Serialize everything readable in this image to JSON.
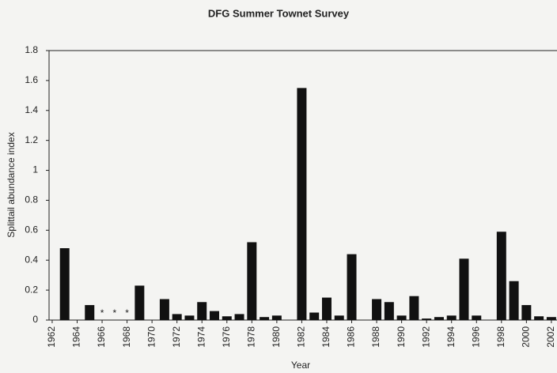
{
  "chart_data": {
    "type": "bar",
    "title": "DFG Summer Townet Survey",
    "x_label": "Year",
    "y_label": "Splittail abundance index",
    "x": [
      1963,
      1965,
      1969,
      1971,
      1972,
      1973,
      1974,
      1975,
      1976,
      1977,
      1978,
      1979,
      1980,
      1982,
      1983,
      1984,
      1985,
      1986,
      1988,
      1989,
      1990,
      1991,
      1992,
      1993,
      1994,
      1995,
      1996,
      1998,
      1999,
      2000,
      2001,
      2002
    ],
    "values": [
      0.48,
      0.1,
      0.23,
      0.14,
      0.04,
      0.03,
      0.12,
      0.06,
      0.025,
      0.04,
      0.52,
      0.02,
      0.03,
      1.55,
      0.05,
      0.15,
      0.03,
      0.44,
      0.14,
      0.12,
      0.03,
      0.16,
      0.01,
      0.02,
      0.03,
      0.41,
      0.03,
      0.59,
      0.26,
      0.1,
      0.025,
      0.02
    ],
    "color": "#111111",
    "annotations": [
      {
        "x": 1966,
        "text": "*"
      },
      {
        "x": 1967,
        "text": "*"
      },
      {
        "x": 1968,
        "text": "*"
      }
    ],
    "xlim": [
      1961.75,
      2002.45
    ],
    "xticks": [
      1962,
      1964,
      1966,
      1968,
      1970,
      1972,
      1974,
      1976,
      1978,
      1980,
      1982,
      1984,
      1986,
      1988,
      1990,
      1992,
      1994,
      1996,
      1998,
      2000,
      2002
    ],
    "ylim": [
      0,
      1.8
    ],
    "yticks": [
      0,
      0.2,
      0.4,
      0.6,
      0.8,
      1,
      1.2,
      1.4,
      1.6,
      1.8
    ]
  }
}
